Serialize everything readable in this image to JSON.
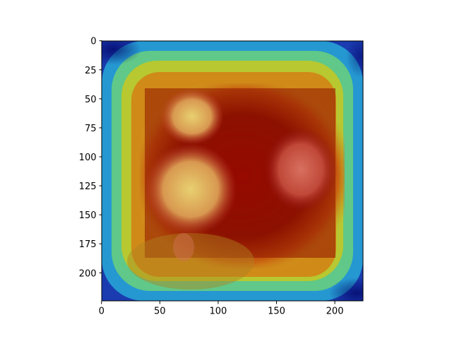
{
  "figure": {
    "image_content": "attention heatmap overlaid on photo of roses",
    "colormap": [
      "#000080",
      "#0040ff",
      "#00c0ff",
      "#40ff80",
      "#c0ff00",
      "#ffb000",
      "#ff4000",
      "#8b0000"
    ],
    "x_axis": {
      "range": [
        0,
        224
      ],
      "ticks": [
        "0",
        "50",
        "100",
        "150",
        "200"
      ]
    },
    "y_axis": {
      "range": [
        0,
        224
      ],
      "inverted": true,
      "ticks": [
        "0",
        "25",
        "50",
        "75",
        "100",
        "125",
        "150",
        "175",
        "200"
      ]
    },
    "grid": false
  }
}
